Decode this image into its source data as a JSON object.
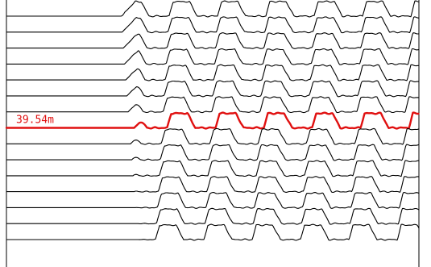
{
  "chart_data": {
    "type": "line",
    "title": "",
    "xlabel": "",
    "ylabel": "",
    "grid": false,
    "legend": "none",
    "trace_count": 15,
    "highlighted_trace_index": 7,
    "highlight": {
      "label": "39.54m",
      "color": "#e01010"
    },
    "trace_color": "#000000",
    "frame_color": "#000000",
    "waveform": {
      "pre_onset_flat": true,
      "cycles_visible": 6,
      "shape": "periodic trapezoidal oscillation with small ripples",
      "onset_drifts_with_depth": true
    }
  }
}
